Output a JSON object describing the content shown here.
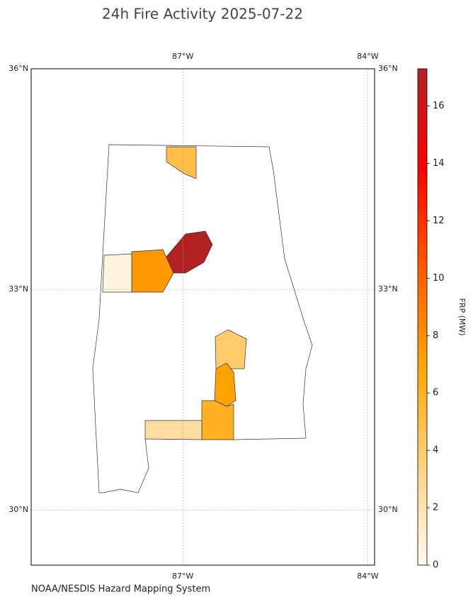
{
  "chart_data": {
    "type": "choropleth",
    "title": "24h Fire Activity 2025-07-22",
    "footer": "NOAA/NESDIS Hazard Mapping System",
    "xlim": [
      -89.46,
      -83.89
    ],
    "ylim": [
      29.25,
      36.0
    ],
    "xticks": [
      {
        "value": -87,
        "label": "87°W"
      },
      {
        "value": -84,
        "label": "84°W"
      }
    ],
    "yticks": [
      {
        "value": 30,
        "label": "30°N"
      },
      {
        "value": 33,
        "label": "33°N"
      },
      {
        "value": 36,
        "label": "36°N"
      }
    ],
    "grid": true,
    "values": [
      17.3,
      7.5,
      5,
      0.5,
      4,
      7,
      6,
      2.5
    ],
    "colorbar": {
      "label": "FRP (MW)",
      "lim": [
        0,
        17.3
      ],
      "ticks": [
        0,
        2,
        4,
        6,
        8,
        10,
        12,
        14,
        16
      ],
      "colors": [
        "#fffaf0",
        "#ffd27f",
        "#ffa500",
        "#ff5a00",
        "#ff0000",
        "#b22222"
      ]
    }
  }
}
